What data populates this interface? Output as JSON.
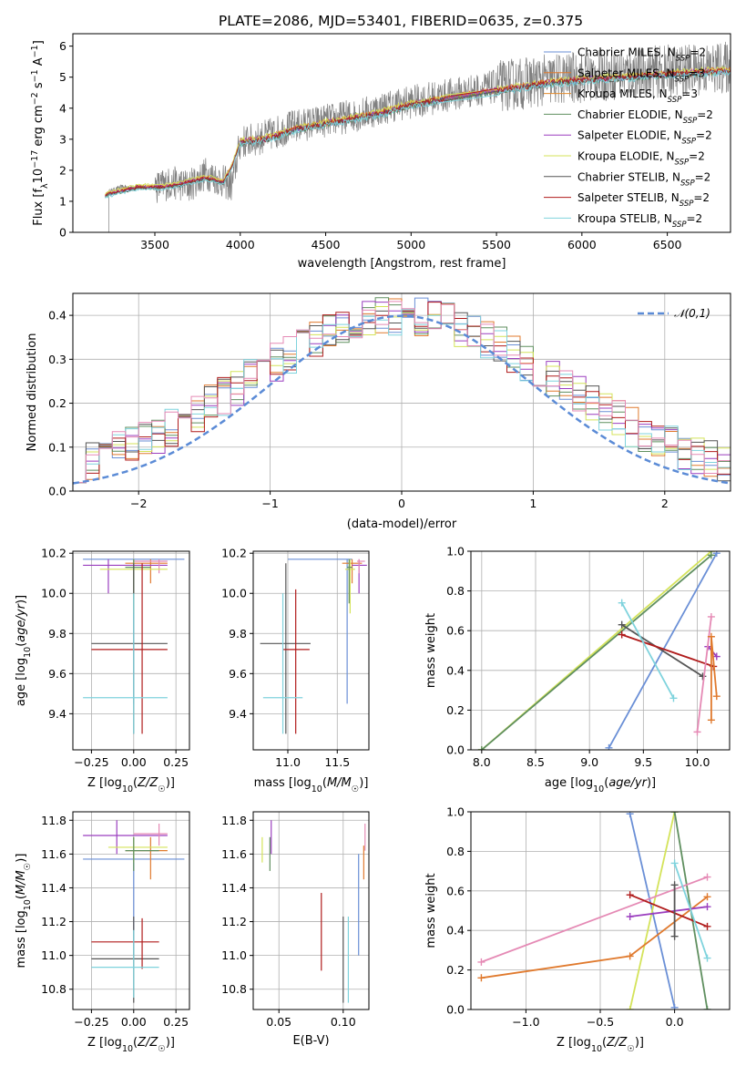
{
  "figure_title": "PLATE=2086, MJD=53401, FIBERID=0635, z=0.375",
  "chart_data": [
    {
      "id": "spectrum",
      "type": "line",
      "title": "PLATE=2086, MJD=53401, FIBERID=0635, z=0.375",
      "xlabel": "wavelength [Angstrom, rest frame]",
      "ylabel": "Flux [f_λ10^-17 erg cm^-2 s^-1 A^-1]",
      "xlim": [
        3020,
        6870
      ],
      "ylim": [
        0,
        6.4
      ],
      "xticks": [
        3500,
        4000,
        4500,
        5000,
        5500,
        6000,
        6500
      ],
      "yticks": [
        0,
        1,
        2,
        3,
        4,
        5,
        6
      ],
      "legend_position": "upper-right",
      "data_color": "#808080",
      "data_knots": [
        [
          3230,
          1.3
        ],
        [
          3300,
          1.45
        ],
        [
          3500,
          1.45
        ],
        [
          3600,
          1.6
        ],
        [
          3700,
          1.5
        ],
        [
          3800,
          1.9
        ],
        [
          3950,
          1.5
        ],
        [
          4000,
          2.9
        ],
        [
          4100,
          3.0
        ],
        [
          4300,
          3.4
        ],
        [
          4500,
          3.6
        ],
        [
          4700,
          3.8
        ],
        [
          4900,
          4.1
        ],
        [
          5100,
          4.3
        ],
        [
          5300,
          4.5
        ],
        [
          5500,
          4.7
        ],
        [
          5800,
          4.9
        ],
        [
          6000,
          5.0
        ],
        [
          6200,
          5.1
        ],
        [
          6500,
          5.2
        ],
        [
          6850,
          5.3
        ]
      ],
      "model_knots": [
        [
          3210,
          1.2
        ],
        [
          3400,
          1.45
        ],
        [
          3550,
          1.45
        ],
        [
          3650,
          1.55
        ],
        [
          3800,
          1.75
        ],
        [
          3900,
          1.6
        ],
        [
          3950,
          2.1
        ],
        [
          4000,
          2.9
        ],
        [
          4150,
          3.0
        ],
        [
          4350,
          3.35
        ],
        [
          4600,
          3.6
        ],
        [
          4800,
          3.8
        ],
        [
          5000,
          4.1
        ],
        [
          5200,
          4.3
        ],
        [
          5500,
          4.55
        ],
        [
          5800,
          4.8
        ],
        [
          6000,
          4.9
        ],
        [
          6300,
          5.0
        ],
        [
          6550,
          5.1
        ],
        [
          6850,
          5.2
        ]
      ],
      "series": [
        {
          "name": "Chabrier MILES, N_SSP=2",
          "color": "#6a8fd6",
          "offset": 0.0
        },
        {
          "name": "Salpeter MILES, N_SSP=3",
          "color": "#e07a2e",
          "offset": 0.05
        },
        {
          "name": "Kroupa MILES, N_SSP=3",
          "color": "#e38b2d",
          "offset": 0.02
        },
        {
          "name": "Chabrier ELODIE, N_SSP=2",
          "color": "#5f8f5f",
          "offset": -0.03
        },
        {
          "name": "Salpeter ELODIE, N_SSP=2",
          "color": "#9b3fbf",
          "offset": 0.03
        },
        {
          "name": "Kroupa ELODIE, N_SSP=2",
          "color": "#d4e35a",
          "offset": 0.08
        },
        {
          "name": "Chabrier STELIB, N_SSP=2",
          "color": "#555555",
          "offset": -0.02
        },
        {
          "name": "Salpeter STELIB, N_SSP=2",
          "color": "#b01c1c",
          "offset": 0.01
        },
        {
          "name": "Kroupa STELIB, N_SSP=2",
          "color": "#7fd3dd",
          "offset": -0.06
        }
      ]
    },
    {
      "id": "residuals",
      "type": "step-histogram",
      "xlabel": "(data-model)/error",
      "ylabel": "Normed distribution",
      "xlim": [
        -2.5,
        2.5
      ],
      "ylim": [
        0,
        0.45
      ],
      "xticks": [
        -2,
        -1,
        0,
        1,
        2
      ],
      "xtick_labels": [
        "−2",
        "−1",
        "0",
        "1",
        "2"
      ],
      "yticks": [
        0,
        0.1,
        0.2,
        0.3,
        0.4
      ],
      "ytick_labels": [
        "0.0",
        "0.1",
        "0.2",
        "0.3",
        "0.4"
      ],
      "bin_width": 0.1,
      "legend_position": "upper-right",
      "normal_curve": {
        "name": "𝒩(0,1)",
        "color": "#5b8bd6"
      },
      "colors": [
        "#6a8fd6",
        "#e07a2e",
        "#5f8f5f",
        "#9b3fbf",
        "#d4e35a",
        "#555555",
        "#b01c1c",
        "#7fd3dd",
        "#e58ab5"
      ]
    },
    {
      "id": "age-vs-Z",
      "type": "errorbar",
      "xlabel": "Z [log10(Z/Z☉)]",
      "ylabel": "age  [log10(age/yr)]",
      "xlim": [
        -0.36,
        0.33
      ],
      "ylim": [
        9.22,
        10.21
      ],
      "xticks": [
        -0.25,
        0.0,
        0.25
      ],
      "xtick_labels": [
        "−0.25",
        "0.00",
        "0.25"
      ],
      "yticks": [
        9.4,
        9.6,
        9.8,
        10.0,
        10.2
      ],
      "ytick_labels": [
        "9.4",
        "9.6",
        "9.8",
        "10.0",
        "10.2"
      ],
      "points": [
        {
          "color": "#6a8fd6",
          "x": 0.0,
          "xl": -0.3,
          "xh": 0.3,
          "y": 10.17,
          "yl": 9.45,
          "yh": 10.17
        },
        {
          "color": "#e07a2e",
          "x": 0.1,
          "xl": -0.05,
          "xh": 0.2,
          "y": 10.15,
          "yl": 10.05,
          "yh": 10.17
        },
        {
          "color": "#9b3fbf",
          "x": -0.15,
          "xl": -0.3,
          "xh": 0.2,
          "y": 10.14,
          "yl": 10.0,
          "yh": 10.17
        },
        {
          "color": "#e58ab5",
          "x": 0.15,
          "xl": 0.0,
          "xh": 0.2,
          "y": 10.16,
          "yl": 10.1,
          "yh": 10.17
        },
        {
          "color": "#d4e35a",
          "x": 0.0,
          "xl": -0.2,
          "xh": 0.2,
          "y": 10.12,
          "yl": 9.9,
          "yh": 10.17
        },
        {
          "color": "#5f8f5f",
          "x": 0.0,
          "xl": -0.05,
          "xh": 0.1,
          "y": 10.13,
          "yl": 9.97,
          "yh": 10.17
        },
        {
          "color": "#555555",
          "x": 0.0,
          "xl": -0.25,
          "xh": 0.2,
          "y": 9.75,
          "yl": 9.3,
          "yh": 10.15
        },
        {
          "color": "#b01c1c",
          "x": 0.05,
          "xl": -0.25,
          "xh": 0.2,
          "y": 9.72,
          "yl": 9.3,
          "yh": 10.15
        },
        {
          "color": "#7fd3dd",
          "x": 0.0,
          "xl": -0.3,
          "xh": 0.2,
          "y": 9.48,
          "yl": 9.3,
          "yh": 10.0
        }
      ]
    },
    {
      "id": "age-vs-mass",
      "type": "errorbar",
      "xlabel": "mass [log10(M/M☉)]",
      "ylabel": "",
      "xlim": [
        10.65,
        11.82
      ],
      "ylim": [
        9.22,
        10.21
      ],
      "xticks": [
        11.0,
        11.5
      ],
      "xtick_labels": [
        "11.0",
        "11.5"
      ],
      "yticks": [
        9.4,
        9.6,
        9.8,
        10.0,
        10.2
      ],
      "ytick_labels": [
        "9.4",
        "9.6",
        "9.8",
        "10.0",
        "10.2"
      ],
      "points": [
        {
          "color": "#6a8fd6",
          "x": 11.6,
          "xl": 11.0,
          "xh": 11.65,
          "y": 10.17,
          "yl": 9.45,
          "yh": 10.17
        },
        {
          "color": "#e07a2e",
          "x": 11.65,
          "xl": 11.55,
          "xh": 11.75,
          "y": 10.15,
          "yl": 10.05,
          "yh": 10.17
        },
        {
          "color": "#9b3fbf",
          "x": 11.72,
          "xl": 11.65,
          "xh": 11.8,
          "y": 10.14,
          "yl": 10.0,
          "yh": 10.17
        },
        {
          "color": "#e58ab5",
          "x": 11.72,
          "xl": 11.7,
          "xh": 11.78,
          "y": 10.16,
          "yl": 10.1,
          "yh": 10.17
        },
        {
          "color": "#d4e35a",
          "x": 11.63,
          "xl": 11.58,
          "xh": 11.68,
          "y": 10.12,
          "yl": 9.9,
          "yh": 10.17
        },
        {
          "color": "#5f8f5f",
          "x": 11.62,
          "xl": 11.6,
          "xh": 11.65,
          "y": 10.13,
          "yl": 9.95,
          "yh": 10.17
        },
        {
          "color": "#555555",
          "x": 10.98,
          "xl": 10.72,
          "xh": 11.23,
          "y": 9.75,
          "yl": 9.3,
          "yh": 10.15
        },
        {
          "color": "#b01c1c",
          "x": 11.08,
          "xl": 10.95,
          "xh": 11.22,
          "y": 9.72,
          "yl": 9.3,
          "yh": 10.02
        },
        {
          "color": "#7fd3dd",
          "x": 10.95,
          "xl": 10.75,
          "xh": 11.15,
          "y": 9.48,
          "yl": 9.3,
          "yh": 10.0
        }
      ]
    },
    {
      "id": "weight-vs-age",
      "type": "line",
      "xlabel": "age  [log10(age/yr)]",
      "ylabel": "mass weight",
      "xlim": [
        7.9,
        10.3
      ],
      "ylim": [
        0,
        1
      ],
      "xticks": [
        8.0,
        8.5,
        9.0,
        9.5,
        10.0
      ],
      "xtick_labels": [
        "8.0",
        "8.5",
        "9.0",
        "9.5",
        "10.0"
      ],
      "yticks": [
        0,
        0.2,
        0.4,
        0.6,
        0.8,
        1.0
      ],
      "ytick_labels": [
        "0.0",
        "0.2",
        "0.4",
        "0.6",
        "0.8",
        "1.0"
      ],
      "series": [
        {
          "color": "#6a8fd6",
          "x": [
            9.18,
            10.18
          ],
          "y": [
            0.01,
            0.99
          ]
        },
        {
          "color": "#d4e35a",
          "x": [
            8.0,
            10.13
          ],
          "y": [
            0.0,
            1.0
          ]
        },
        {
          "color": "#5f8f5f",
          "x": [
            8.0,
            10.13
          ],
          "y": [
            0.0,
            0.98
          ]
        },
        {
          "color": "#555555",
          "x": [
            9.3,
            10.05
          ],
          "y": [
            0.63,
            0.37
          ]
        },
        {
          "color": "#b01c1c",
          "x": [
            9.3,
            10.15
          ],
          "y": [
            0.58,
            0.42
          ]
        },
        {
          "color": "#7fd3dd",
          "x": [
            9.3,
            9.78
          ],
          "y": [
            0.74,
            0.26
          ]
        },
        {
          "color": "#9b3fbf",
          "x": [
            10.1,
            10.18
          ],
          "y": [
            0.52,
            0.47
          ]
        },
        {
          "color": "#e58ab5",
          "x": [
            10.0,
            10.13
          ],
          "y": [
            0.09,
            0.67
          ]
        },
        {
          "color": "#e07a2e",
          "x": [
            10.13,
            10.13,
            10.18
          ],
          "y": [
            0.15,
            0.57,
            0.27
          ]
        }
      ]
    },
    {
      "id": "mass-vs-Z",
      "type": "errorbar",
      "xlabel": "Z [log10(Z/Z☉)]",
      "ylabel": "mass [log10(M/M☉)]",
      "xlim": [
        -0.36,
        0.33
      ],
      "ylim": [
        10.68,
        11.85
      ],
      "xticks": [
        -0.25,
        0.0,
        0.25
      ],
      "xtick_labels": [
        "−0.25",
        "0.00",
        "0.25"
      ],
      "yticks": [
        10.8,
        11.0,
        11.2,
        11.4,
        11.6,
        11.8
      ],
      "ytick_labels": [
        "10.8",
        "11.0",
        "11.2",
        "11.4",
        "11.6",
        "11.8"
      ],
      "points": [
        {
          "color": "#6a8fd6",
          "x": 0.0,
          "xl": -0.3,
          "xh": 0.3,
          "y": 11.57,
          "yl": 11.0,
          "yh": 11.63
        },
        {
          "color": "#9b3fbf",
          "x": -0.1,
          "xl": -0.3,
          "xh": 0.2,
          "y": 11.71,
          "yl": 11.6,
          "yh": 11.8
        },
        {
          "color": "#e58ab5",
          "x": 0.15,
          "xl": 0.0,
          "xh": 0.2,
          "y": 11.72,
          "yl": 11.65,
          "yh": 11.78
        },
        {
          "color": "#e07a2e",
          "x": 0.1,
          "xl": -0.05,
          "xh": 0.2,
          "y": 11.62,
          "yl": 11.45,
          "yh": 11.7
        },
        {
          "color": "#d4e35a",
          "x": 0.0,
          "xl": -0.15,
          "xh": 0.2,
          "y": 11.64,
          "yl": 11.55,
          "yh": 11.7
        },
        {
          "color": "#5f8f5f",
          "x": 0.0,
          "xl": -0.05,
          "xh": 0.15,
          "y": 11.62,
          "yl": 11.5,
          "yh": 11.7
        },
        {
          "color": "#555555",
          "x": 0.0,
          "xl": -0.25,
          "xh": 0.15,
          "y": 10.98,
          "yl": 10.72,
          "yh": 11.23
        },
        {
          "color": "#b01c1c",
          "x": 0.05,
          "xl": -0.25,
          "xh": 0.15,
          "y": 11.08,
          "yl": 10.92,
          "yh": 11.22
        },
        {
          "color": "#7fd3dd",
          "x": 0.0,
          "xl": -0.25,
          "xh": 0.15,
          "y": 10.93,
          "yl": 10.75,
          "yh": 11.15
        }
      ]
    },
    {
      "id": "mass-vs-EBV",
      "type": "errorbar",
      "xlabel": "E(B-V)",
      "ylabel": "",
      "xlim": [
        0.03,
        0.12
      ],
      "ylim": [
        10.68,
        11.85
      ],
      "xticks": [
        0.05,
        0.1
      ],
      "xtick_labels": [
        "0.05",
        "0.10"
      ],
      "yticks": [
        10.8,
        11.0,
        11.2,
        11.4,
        11.6,
        11.8
      ],
      "ytick_labels": [
        "10.8",
        "11.0",
        "11.2",
        "11.4",
        "11.6",
        "11.8"
      ],
      "points": [
        {
          "color": "#6a8fd6",
          "x": 0.112,
          "xl": 0.112,
          "xh": 0.112,
          "y": 11.3,
          "yl": 11.0,
          "yh": 11.6
        },
        {
          "color": "#e07a2e",
          "x": 0.116,
          "xl": 0.116,
          "xh": 0.116,
          "y": 11.55,
          "yl": 11.45,
          "yh": 11.65
        },
        {
          "color": "#9b3fbf",
          "x": 0.044,
          "xl": 0.044,
          "xh": 0.044,
          "y": 11.7,
          "yl": 11.6,
          "yh": 11.8
        },
        {
          "color": "#e58ab5",
          "x": 0.117,
          "xl": 0.117,
          "xh": 0.117,
          "y": 11.7,
          "yl": 11.62,
          "yh": 11.78
        },
        {
          "color": "#d4e35a",
          "x": 0.037,
          "xl": 0.037,
          "xh": 0.037,
          "y": 11.62,
          "yl": 11.55,
          "yh": 11.7
        },
        {
          "color": "#5f8f5f",
          "x": 0.043,
          "xl": 0.043,
          "xh": 0.043,
          "y": 11.6,
          "yl": 11.5,
          "yh": 11.7
        },
        {
          "color": "#555555",
          "x": 0.1,
          "xl": 0.1,
          "xh": 0.1,
          "y": 10.98,
          "yl": 10.72,
          "yh": 11.23
        },
        {
          "color": "#b01c1c",
          "x": 0.083,
          "xl": 0.083,
          "xh": 0.083,
          "y": 11.14,
          "yl": 10.91,
          "yh": 11.37
        },
        {
          "color": "#7fd3dd",
          "x": 0.104,
          "xl": 0.104,
          "xh": 0.104,
          "y": 10.95,
          "yl": 10.72,
          "yh": 11.23
        }
      ]
    },
    {
      "id": "weight-vs-Z",
      "type": "line",
      "xlabel": "Z [log10(Z/Z☉)]",
      "ylabel": "mass weight",
      "xlim": [
        -1.37,
        0.37
      ],
      "ylim": [
        0,
        1
      ],
      "xticks": [
        -1.0,
        -0.5,
        0.0
      ],
      "xtick_labels": [
        "−1.0",
        "−0.5",
        "0.0"
      ],
      "yticks": [
        0,
        0.2,
        0.4,
        0.6,
        0.8,
        1.0
      ],
      "ytick_labels": [
        "0.0",
        "0.2",
        "0.4",
        "0.6",
        "0.8",
        "1.0"
      ],
      "series": [
        {
          "color": "#6a8fd6",
          "x": [
            -0.3,
            0.0
          ],
          "y": [
            0.99,
            0.01
          ]
        },
        {
          "color": "#d4e35a",
          "x": [
            -0.3,
            0.0
          ],
          "y": [
            0.0,
            1.0
          ]
        },
        {
          "color": "#5f8f5f",
          "x": [
            0.0,
            0.22
          ],
          "y": [
            1.0,
            0.0
          ]
        },
        {
          "color": "#e58ab5",
          "x": [
            -1.3,
            0.22
          ],
          "y": [
            0.24,
            0.67
          ]
        },
        {
          "color": "#e07a2e",
          "x": [
            -1.3,
            -0.3,
            0.22
          ],
          "y": [
            0.16,
            0.27,
            0.57
          ]
        },
        {
          "color": "#9b3fbf",
          "x": [
            -0.3,
            0.22
          ],
          "y": [
            0.47,
            0.52
          ]
        },
        {
          "color": "#b01c1c",
          "x": [
            -0.3,
            0.22
          ],
          "y": [
            0.58,
            0.42
          ]
        },
        {
          "color": "#555555",
          "x": [
            0.0,
            0.0
          ],
          "y": [
            0.63,
            0.37
          ]
        },
        {
          "color": "#7fd3dd",
          "x": [
            0.0,
            0.22
          ],
          "y": [
            0.74,
            0.26
          ]
        }
      ]
    }
  ]
}
